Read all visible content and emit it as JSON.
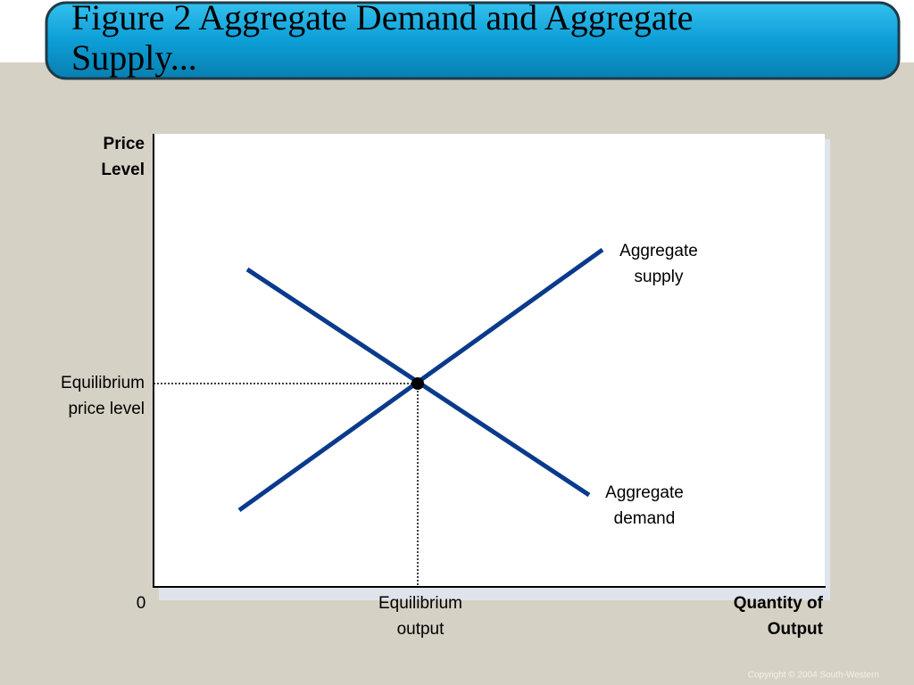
{
  "title": [
    "Figure 2 Aggregate Demand and Aggregate",
    "Supply..."
  ],
  "axes": {
    "y_label": [
      "Price",
      "Level"
    ],
    "x_label": [
      "Quantity of",
      "Output"
    ],
    "origin": "0"
  },
  "equilibrium": {
    "price_label": [
      "Equilibrium",
      "price level"
    ],
    "output_label": [
      "Equilibrium",
      "output"
    ]
  },
  "curves": {
    "supply_label": [
      "Aggregate",
      "supply"
    ],
    "demand_label": [
      "Aggregate",
      "demand"
    ]
  },
  "footer": {
    "copyright": "Copyright © 2004  South-Western"
  }
}
